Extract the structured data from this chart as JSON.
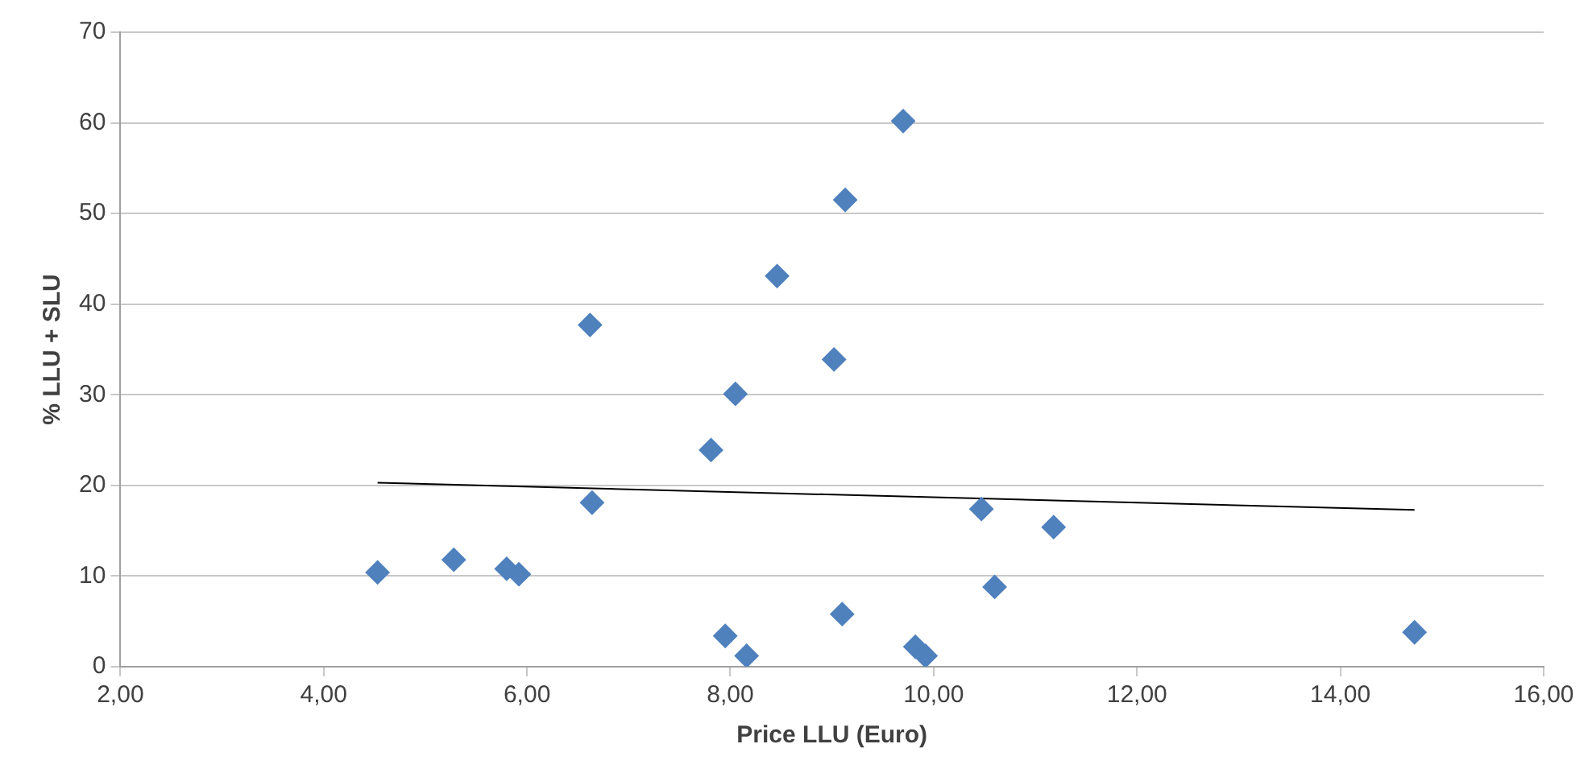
{
  "chart_data": {
    "type": "scatter",
    "xlabel": "Price LLU (Euro)",
    "ylabel": "% LLU + SLU",
    "xlim": [
      2,
      16
    ],
    "xticks": [
      {
        "value": 2,
        "label": "2,00"
      },
      {
        "value": 4,
        "label": "4,00"
      },
      {
        "value": 6,
        "label": "6,00"
      },
      {
        "value": 8,
        "label": "8,00"
      },
      {
        "value": 10,
        "label": "10,00"
      },
      {
        "value": 12,
        "label": "12,00"
      },
      {
        "value": 14,
        "label": "14,00"
      },
      {
        "value": 16,
        "label": "16,00"
      }
    ],
    "ylim": [
      0,
      70
    ],
    "yticks": [
      0,
      10,
      20,
      30,
      40,
      50,
      60,
      70
    ],
    "grid": "y",
    "legend": false,
    "marker": "diamond",
    "series": [
      {
        "color": "#4f81bd",
        "x": [
          4.53,
          5.28,
          5.8,
          5.92,
          6.62,
          6.64,
          7.81,
          7.95,
          8.05,
          8.16,
          8.46,
          9.02,
          9.1,
          9.13,
          9.7,
          9.82,
          9.92,
          10.47,
          10.6,
          11.18,
          14.73
        ],
        "values": [
          10.4,
          11.8,
          10.8,
          10.2,
          37.7,
          18.1,
          23.9,
          3.4,
          30.1,
          1.2,
          43.1,
          33.9,
          5.8,
          51.5,
          60.2,
          2.2,
          1.2,
          17.4,
          8.8,
          15.4,
          3.8
        ]
      },
      {
        "type": "line",
        "color": "#000000",
        "x": [
          4.53,
          14.73
        ],
        "values": [
          20.3,
          17.3
        ],
        "marker": "none"
      }
    ]
  }
}
